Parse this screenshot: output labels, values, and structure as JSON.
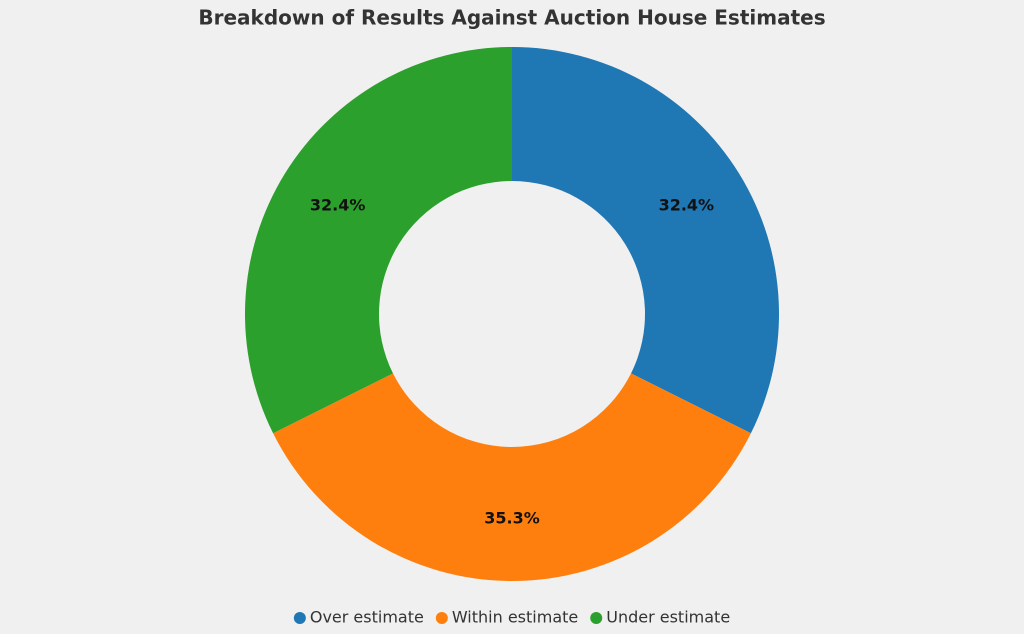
{
  "chart_data": {
    "type": "donut",
    "title": "Breakdown of Results Against Auction House Estimates",
    "categories": [
      "Over estimate",
      "Within estimate",
      "Under estimate"
    ],
    "values": [
      32.4,
      35.3,
      32.4
    ],
    "value_labels": [
      "32.4%",
      "35.3%",
      "32.4%"
    ],
    "colors": [
      "#1f77b4",
      "#ff7f0e",
      "#2ca02c"
    ],
    "legend": "bottom"
  }
}
